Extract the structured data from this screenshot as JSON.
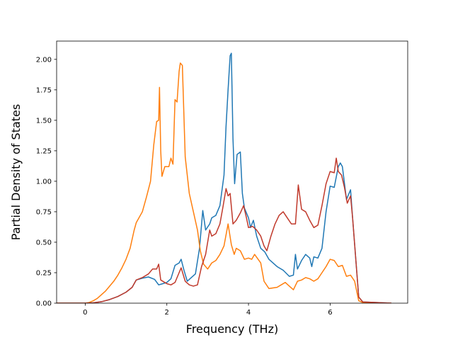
{
  "chart_data": {
    "type": "line",
    "title": "",
    "xlabel": "Frequency (THz)",
    "ylabel": "Partial Density of States",
    "xlim": [
      -0.7,
      7.9
    ],
    "ylim": [
      0.0,
      2.15
    ],
    "xticks": [
      0,
      2,
      4,
      6
    ],
    "yticks": [
      0.0,
      0.25,
      0.5,
      0.75,
      1.0,
      1.25,
      1.5,
      1.75,
      2.0
    ],
    "xtick_labels": [
      "0",
      "2",
      "4",
      "6"
    ],
    "ytick_labels": [
      "0.00",
      "0.25",
      "0.50",
      "0.75",
      "1.00",
      "1.25",
      "1.50",
      "1.75",
      "2.00"
    ],
    "grid": false,
    "legend": "none",
    "series": [
      {
        "color": "#1f77b4",
        "points": [
          [
            -0.7,
            0
          ],
          [
            0,
            0
          ],
          [
            0.2,
            0.003
          ],
          [
            0.4,
            0.012
          ],
          [
            0.6,
            0.03
          ],
          [
            0.8,
            0.055
          ],
          [
            1.0,
            0.09
          ],
          [
            1.15,
            0.13
          ],
          [
            1.25,
            0.19
          ],
          [
            1.4,
            0.205
          ],
          [
            1.55,
            0.215
          ],
          [
            1.7,
            0.195
          ],
          [
            1.8,
            0.15
          ],
          [
            1.9,
            0.16
          ],
          [
            2.0,
            0.17
          ],
          [
            2.1,
            0.2
          ],
          [
            2.2,
            0.31
          ],
          [
            2.3,
            0.33
          ],
          [
            2.35,
            0.36
          ],
          [
            2.42,
            0.27
          ],
          [
            2.5,
            0.18
          ],
          [
            2.6,
            0.21
          ],
          [
            2.7,
            0.24
          ],
          [
            2.8,
            0.45
          ],
          [
            2.88,
            0.76
          ],
          [
            2.95,
            0.6
          ],
          [
            3.05,
            0.65
          ],
          [
            3.1,
            0.7
          ],
          [
            3.2,
            0.72
          ],
          [
            3.3,
            0.8
          ],
          [
            3.4,
            1.05
          ],
          [
            3.45,
            1.45
          ],
          [
            3.5,
            1.75
          ],
          [
            3.55,
            2.03
          ],
          [
            3.58,
            2.05
          ],
          [
            3.62,
            1.35
          ],
          [
            3.66,
            0.98
          ],
          [
            3.72,
            1.22
          ],
          [
            3.8,
            1.24
          ],
          [
            3.85,
            0.9
          ],
          [
            3.9,
            0.78
          ],
          [
            4.0,
            0.7
          ],
          [
            4.05,
            0.62
          ],
          [
            4.12,
            0.68
          ],
          [
            4.2,
            0.55
          ],
          [
            4.3,
            0.45
          ],
          [
            4.4,
            0.42
          ],
          [
            4.5,
            0.36
          ],
          [
            4.7,
            0.3
          ],
          [
            4.85,
            0.27
          ],
          [
            5.0,
            0.22
          ],
          [
            5.1,
            0.23
          ],
          [
            5.15,
            0.4
          ],
          [
            5.2,
            0.28
          ],
          [
            5.3,
            0.35
          ],
          [
            5.4,
            0.4
          ],
          [
            5.5,
            0.37
          ],
          [
            5.55,
            0.3
          ],
          [
            5.6,
            0.38
          ],
          [
            5.7,
            0.37
          ],
          [
            5.8,
            0.45
          ],
          [
            5.9,
            0.75
          ],
          [
            6.0,
            0.96
          ],
          [
            6.1,
            0.95
          ],
          [
            6.2,
            1.12
          ],
          [
            6.25,
            1.15
          ],
          [
            6.3,
            1.12
          ],
          [
            6.4,
            0.85
          ],
          [
            6.5,
            0.93
          ],
          [
            6.55,
            0.7
          ],
          [
            6.7,
            0.05
          ],
          [
            6.8,
            0.01
          ],
          [
            7.5,
            0
          ]
        ]
      },
      {
        "color": "#ff7f0e",
        "points": [
          [
            -0.7,
            0
          ],
          [
            0,
            0
          ],
          [
            0.1,
            0.006
          ],
          [
            0.2,
            0.02
          ],
          [
            0.3,
            0.04
          ],
          [
            0.4,
            0.07
          ],
          [
            0.5,
            0.1
          ],
          [
            0.6,
            0.14
          ],
          [
            0.7,
            0.18
          ],
          [
            0.8,
            0.23
          ],
          [
            0.9,
            0.29
          ],
          [
            1.0,
            0.36
          ],
          [
            1.1,
            0.45
          ],
          [
            1.2,
            0.6
          ],
          [
            1.25,
            0.66
          ],
          [
            1.4,
            0.75
          ],
          [
            1.5,
            0.87
          ],
          [
            1.6,
            1.0
          ],
          [
            1.68,
            1.3
          ],
          [
            1.75,
            1.49
          ],
          [
            1.8,
            1.5
          ],
          [
            1.82,
            1.77
          ],
          [
            1.85,
            1.25
          ],
          [
            1.88,
            1.04
          ],
          [
            1.95,
            1.12
          ],
          [
            2.05,
            1.12
          ],
          [
            2.1,
            1.19
          ],
          [
            2.15,
            1.14
          ],
          [
            2.2,
            1.67
          ],
          [
            2.25,
            1.65
          ],
          [
            2.3,
            1.9
          ],
          [
            2.33,
            1.97
          ],
          [
            2.38,
            1.95
          ],
          [
            2.45,
            1.2
          ],
          [
            2.55,
            0.9
          ],
          [
            2.65,
            0.75
          ],
          [
            2.75,
            0.6
          ],
          [
            2.82,
            0.43
          ],
          [
            2.9,
            0.32
          ],
          [
            3.0,
            0.28
          ],
          [
            3.1,
            0.33
          ],
          [
            3.2,
            0.35
          ],
          [
            3.3,
            0.4
          ],
          [
            3.4,
            0.47
          ],
          [
            3.5,
            0.65
          ],
          [
            3.58,
            0.48
          ],
          [
            3.65,
            0.4
          ],
          [
            3.7,
            0.45
          ],
          [
            3.8,
            0.43
          ],
          [
            3.9,
            0.36
          ],
          [
            4.0,
            0.37
          ],
          [
            4.08,
            0.36
          ],
          [
            4.15,
            0.4
          ],
          [
            4.3,
            0.33
          ],
          [
            4.38,
            0.18
          ],
          [
            4.5,
            0.12
          ],
          [
            4.7,
            0.13
          ],
          [
            4.8,
            0.15
          ],
          [
            4.9,
            0.17
          ],
          [
            5.0,
            0.14
          ],
          [
            5.1,
            0.11
          ],
          [
            5.2,
            0.18
          ],
          [
            5.3,
            0.19
          ],
          [
            5.4,
            0.21
          ],
          [
            5.5,
            0.2
          ],
          [
            5.6,
            0.18
          ],
          [
            5.7,
            0.2
          ],
          [
            5.8,
            0.25
          ],
          [
            5.9,
            0.3
          ],
          [
            6.0,
            0.36
          ],
          [
            6.1,
            0.35
          ],
          [
            6.2,
            0.3
          ],
          [
            6.3,
            0.31
          ],
          [
            6.4,
            0.22
          ],
          [
            6.5,
            0.23
          ],
          [
            6.6,
            0.18
          ],
          [
            6.7,
            0.02
          ],
          [
            6.8,
            0.005
          ],
          [
            7.5,
            0
          ]
        ]
      },
      {
        "color": "#c0392b",
        "points": [
          [
            -0.7,
            0
          ],
          [
            0,
            0
          ],
          [
            0.2,
            0.003
          ],
          [
            0.4,
            0.012
          ],
          [
            0.6,
            0.03
          ],
          [
            0.8,
            0.055
          ],
          [
            1.0,
            0.09
          ],
          [
            1.15,
            0.13
          ],
          [
            1.25,
            0.19
          ],
          [
            1.4,
            0.21
          ],
          [
            1.55,
            0.24
          ],
          [
            1.65,
            0.28
          ],
          [
            1.75,
            0.28
          ],
          [
            1.8,
            0.32
          ],
          [
            1.85,
            0.19
          ],
          [
            2.0,
            0.16
          ],
          [
            2.1,
            0.15
          ],
          [
            2.2,
            0.17
          ],
          [
            2.3,
            0.25
          ],
          [
            2.35,
            0.29
          ],
          [
            2.45,
            0.18
          ],
          [
            2.55,
            0.15
          ],
          [
            2.65,
            0.14
          ],
          [
            2.75,
            0.15
          ],
          [
            2.85,
            0.3
          ],
          [
            2.95,
            0.4
          ],
          [
            3.05,
            0.6
          ],
          [
            3.1,
            0.55
          ],
          [
            3.2,
            0.57
          ],
          [
            3.3,
            0.65
          ],
          [
            3.38,
            0.8
          ],
          [
            3.45,
            0.94
          ],
          [
            3.5,
            0.88
          ],
          [
            3.55,
            0.9
          ],
          [
            3.62,
            0.65
          ],
          [
            3.7,
            0.68
          ],
          [
            3.8,
            0.74
          ],
          [
            3.88,
            0.8
          ],
          [
            3.95,
            0.7
          ],
          [
            4.0,
            0.62
          ],
          [
            4.1,
            0.63
          ],
          [
            4.2,
            0.6
          ],
          [
            4.3,
            0.55
          ],
          [
            4.38,
            0.47
          ],
          [
            4.45,
            0.43
          ],
          [
            4.55,
            0.55
          ],
          [
            4.65,
            0.65
          ],
          [
            4.75,
            0.72
          ],
          [
            4.85,
            0.75
          ],
          [
            4.95,
            0.7
          ],
          [
            5.05,
            0.65
          ],
          [
            5.15,
            0.65
          ],
          [
            5.22,
            0.97
          ],
          [
            5.3,
            0.77
          ],
          [
            5.4,
            0.75
          ],
          [
            5.5,
            0.68
          ],
          [
            5.6,
            0.62
          ],
          [
            5.7,
            0.64
          ],
          [
            5.8,
            0.8
          ],
          [
            5.9,
            0.98
          ],
          [
            6.0,
            1.08
          ],
          [
            6.1,
            1.07
          ],
          [
            6.15,
            1.19
          ],
          [
            6.2,
            1.08
          ],
          [
            6.28,
            1.05
          ],
          [
            6.35,
            0.95
          ],
          [
            6.42,
            0.82
          ],
          [
            6.5,
            0.88
          ],
          [
            6.55,
            0.7
          ],
          [
            6.7,
            0.05
          ],
          [
            6.8,
            0.01
          ],
          [
            7.5,
            0
          ]
        ]
      }
    ]
  }
}
